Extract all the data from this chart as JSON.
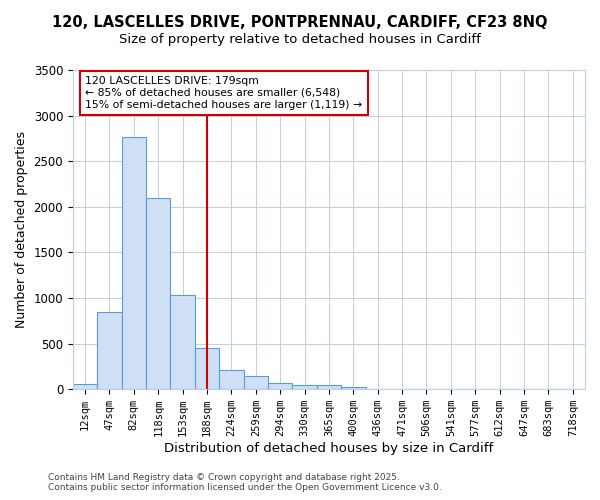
{
  "title1": "120, LASCELLES DRIVE, PONTPRENNAU, CARDIFF, CF23 8NQ",
  "title2": "Size of property relative to detached houses in Cardiff",
  "xlabel": "Distribution of detached houses by size in Cardiff",
  "ylabel": "Number of detached properties",
  "bins": [
    "12sqm",
    "47sqm",
    "82sqm",
    "118sqm",
    "153sqm",
    "188sqm",
    "224sqm",
    "259sqm",
    "294sqm",
    "330sqm",
    "365sqm",
    "400sqm",
    "436sqm",
    "471sqm",
    "506sqm",
    "541sqm",
    "577sqm",
    "612sqm",
    "647sqm",
    "683sqm",
    "718sqm"
  ],
  "values": [
    55,
    850,
    2760,
    2100,
    1030,
    450,
    210,
    150,
    65,
    50,
    50,
    20,
    5,
    2,
    1,
    1,
    0,
    0,
    0,
    0,
    0
  ],
  "bar_color": "#cfe0f5",
  "bar_edge_color": "#5b9bd5",
  "vline_x": 5,
  "vline_color": "#cc0000",
  "annotation_text": "120 LASCELLES DRIVE: 179sqm\n← 85% of detached houses are smaller (6,548)\n15% of semi-detached houses are larger (1,119) →",
  "annotation_box_color": "#cc0000",
  "ylim": [
    0,
    3500
  ],
  "footnote1": "Contains HM Land Registry data © Crown copyright and database right 2025.",
  "footnote2": "Contains public sector information licensed under the Open Government Licence v3.0.",
  "background_color": "#ffffff",
  "grid_color": "#c0cfe8",
  "title_fontsize": 10.5,
  "subtitle_fontsize": 9.5
}
